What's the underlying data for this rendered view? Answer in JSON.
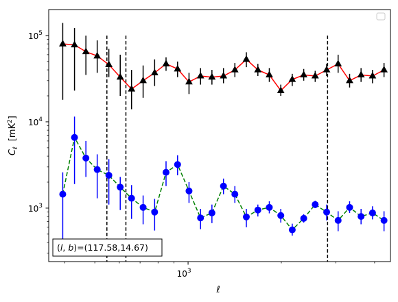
{
  "chart_data": {
    "type": "line",
    "xlabel": "ℓ",
    "ylabel_main": "C",
    "ylabel_sub": "ℓ",
    "ylabel_unit": "[mK",
    "ylabel_unit_sup": "2",
    "ylabel_unit_close": "]",
    "xscale": "log",
    "yscale": "log",
    "xlim": [
      355,
      4500
    ],
    "ylim": [
      240,
      200000
    ],
    "legend": {
      "placement": "top-right",
      "entries": []
    },
    "annotation": "(l, b)=(117.58,14.67)",
    "annotation_parts": {
      "l": "l",
      "b": "b",
      "rest": "=(117.58,14.67)"
    },
    "x_ticks": [
      {
        "value": 1000,
        "base": "10",
        "exp": "3"
      }
    ],
    "y_ticks": [
      {
        "value": 1000,
        "base": "10",
        "exp": "3"
      },
      {
        "value": 10000,
        "base": "10",
        "exp": "4"
      },
      {
        "value": 100000,
        "base": "10",
        "exp": "5"
      }
    ],
    "vlines": [
      547,
      630,
      2820
    ],
    "series": [
      {
        "marker": "triangle",
        "color": "#000000",
        "line_color": "#ff0000",
        "line_style": "solid",
        "x": [
          394,
          430,
          468,
          509,
          555,
          604,
          657,
          716,
          780,
          849,
          925,
          1007,
          1097,
          1194,
          1301,
          1416,
          1542,
          1680,
          1829,
          1992,
          2169,
          2362,
          2572,
          2801,
          3050,
          3322,
          3617,
          3939,
          4290
        ],
        "y": [
          80000,
          78000,
          65000,
          58000,
          46000,
          33000,
          24000,
          30000,
          37000,
          47000,
          41000,
          29000,
          34000,
          33000,
          34000,
          40000,
          53000,
          40000,
          35000,
          23000,
          31000,
          35000,
          34000,
          40000,
          47000,
          30000,
          35000,
          34000,
          40000
        ],
        "y_low": [
          18000,
          23000,
          35000,
          37000,
          33000,
          20000,
          14000,
          19000,
          26000,
          39000,
          33000,
          21000,
          27000,
          27000,
          28000,
          33000,
          43000,
          34000,
          29000,
          20000,
          26000,
          30000,
          29000,
          34000,
          37000,
          25000,
          29000,
          28000,
          33000
        ],
        "y_high": [
          140000,
          122000,
          100000,
          88000,
          70000,
          60000,
          40000,
          45000,
          53000,
          56000,
          50000,
          37000,
          42000,
          40000,
          42000,
          48000,
          64000,
          47000,
          42000,
          27000,
          36000,
          41000,
          39000,
          47000,
          60000,
          36000,
          42000,
          40000,
          48000
        ]
      },
      {
        "marker": "circle",
        "color": "#0000ff",
        "line_color": "#008000",
        "line_style": "dashed",
        "x": [
          394,
          430,
          468,
          509,
          555,
          604,
          657,
          716,
          780,
          849,
          925,
          1007,
          1097,
          1194,
          1301,
          1416,
          1542,
          1680,
          1829,
          1992,
          2169,
          2362,
          2572,
          2801,
          3050,
          3322,
          3617,
          3939,
          4290
        ],
        "y": [
          1450,
          6600,
          3800,
          2800,
          2400,
          1750,
          1300,
          1020,
          900,
          2600,
          3200,
          1580,
          770,
          880,
          1800,
          1450,
          790,
          950,
          1020,
          820,
          560,
          760,
          1100,
          900,
          720,
          1020,
          800,
          880,
          720
        ],
        "y_low": [
          300,
          1900,
          2300,
          1300,
          1100,
          950,
          750,
          650,
          550,
          1800,
          2400,
          1150,
          570,
          670,
          1450,
          1150,
          600,
          800,
          870,
          680,
          480,
          680,
          1000,
          720,
          540,
          880,
          650,
          740,
          540
        ],
        "y_high": [
          2600,
          11500,
          6000,
          4200,
          3700,
          2300,
          1850,
          1400,
          1280,
          3500,
          4100,
          2000,
          980,
          1100,
          2200,
          1800,
          980,
          1100,
          1200,
          980,
          660,
          850,
          1220,
          1100,
          920,
          1200,
          980,
          1050,
          920
        ]
      }
    ]
  }
}
